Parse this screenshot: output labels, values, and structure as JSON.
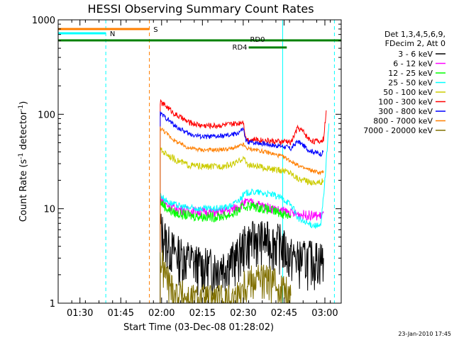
{
  "chart_data": {
    "type": "line",
    "title": "HESSI Observing Summary Count Rates",
    "xlabel": "Start Time (03-Dec-08 01:28:02)",
    "ylabel_main": "Count Rate (s",
    "ylabel_sup1": "-1",
    "ylabel_mid": " detector",
    "ylabel_sup2": "-1",
    "ylabel_end": ")",
    "yscale": "log",
    "ylim": [
      1,
      1000
    ],
    "xlim_minutes": [
      82,
      186
    ],
    "x_ticks": [
      {
        "label": "01:30",
        "minutes": 90
      },
      {
        "label": "01:45",
        "minutes": 105
      },
      {
        "label": "02:00",
        "minutes": 120
      },
      {
        "label": "02:15",
        "minutes": 135
      },
      {
        "label": "02:30",
        "minutes": 150
      },
      {
        "label": "02:45",
        "minutes": 165
      },
      {
        "label": "03:00",
        "minutes": 180
      }
    ],
    "y_ticks": [
      {
        "label": "1",
        "value": 1
      },
      {
        "label": "10",
        "value": 10
      },
      {
        "label": "100",
        "value": 100
      },
      {
        "label": "1000",
        "value": 1000
      }
    ],
    "legend": {
      "header": [
        "Det 1,3,4,5,6,9,",
        "FDecim 2, Att 0"
      ],
      "placement": "right"
    },
    "series": [
      {
        "name": "3 - 6 keV",
        "color": "#000000",
        "x": [
          119.5,
          122,
          125,
          130,
          135,
          140,
          145,
          148,
          150,
          152,
          155,
          158,
          161,
          164,
          166,
          167.5,
          170,
          173,
          176,
          178.5,
          179.5
        ],
        "y": [
          6.5,
          4.5,
          3.5,
          3.0,
          2.5,
          2.5,
          2.8,
          3.2,
          4.2,
          4.6,
          5.0,
          4.8,
          4.6,
          4.4,
          3.5,
          3.2,
          3.0,
          3.0,
          3.0,
          3.0,
          3.0
        ]
      },
      {
        "name": "6 - 12 keV",
        "color": "#ff00ff",
        "x": [
          119.5,
          122,
          125,
          130,
          135,
          140,
          145,
          148,
          150,
          152,
          155,
          158,
          161,
          164,
          166,
          167.5,
          170,
          173,
          176,
          178.5,
          179.5
        ],
        "y": [
          13,
          11,
          10,
          9.5,
          9.3,
          9.2,
          9.6,
          10.5,
          11.5,
          11.8,
          11.2,
          10.5,
          10.0,
          9.5,
          9.3,
          9.0,
          8.8,
          8.6,
          8.5,
          8.4,
          9.0
        ]
      },
      {
        "name": "12 - 25 keV",
        "color": "#00ff00",
        "x": [
          119.5,
          122,
          125,
          130,
          135,
          140,
          145,
          148,
          150,
          152,
          155,
          158,
          161,
          164,
          166,
          167.5
        ],
        "y": [
          12,
          10,
          9,
          8.5,
          8.3,
          8.2,
          8.6,
          9.5,
          10.5,
          10.8,
          10.5,
          10.0,
          9.5,
          9.0,
          8.7,
          8.5
        ]
      },
      {
        "name": "25 - 50 keV",
        "color": "#00ffff",
        "x": [
          119.5,
          122,
          125,
          130,
          135,
          140,
          145,
          148,
          150,
          152,
          155,
          158,
          161,
          164,
          166,
          167.5,
          168.5,
          170,
          173,
          176,
          178.5,
          180,
          181.5
        ],
        "y": [
          14,
          12,
          11,
          10.2,
          10,
          10,
          10.6,
          12,
          14,
          15,
          15,
          14.5,
          14,
          13,
          12,
          11,
          10,
          8,
          7,
          6.7,
          6.5,
          20,
          80
        ]
      },
      {
        "name": "50 - 100 keV",
        "color": "#cccc00",
        "x": [
          119.5,
          122,
          125,
          130,
          135,
          140,
          145,
          148,
          150,
          151,
          152,
          155,
          158,
          161,
          164,
          166,
          167.5,
          170,
          172,
          174,
          176,
          178.5,
          179.5
        ],
        "y": [
          42,
          38,
          33,
          29,
          28,
          28,
          29,
          31,
          35,
          31,
          29,
          28,
          27,
          26,
          25.5,
          25,
          24,
          21,
          20,
          19.5,
          19,
          19,
          20
        ]
      },
      {
        "name": "100 - 300 keV",
        "color": "#ff0000",
        "x": [
          119.5,
          122,
          125,
          130,
          135,
          140,
          145,
          148,
          150,
          151,
          152,
          155,
          158,
          161,
          164,
          166,
          167.5,
          170,
          172,
          174,
          176,
          178.5,
          179.5,
          180.5
        ],
        "y": [
          135,
          120,
          100,
          82,
          76,
          76,
          78,
          80,
          85,
          55,
          54,
          54,
          53,
          52,
          51,
          52,
          50,
          72,
          66,
          55,
          52,
          52,
          55,
          110
        ]
      },
      {
        "name": "300 - 800 keV",
        "color": "#0000ff",
        "x": [
          119.5,
          122,
          125,
          130,
          135,
          140,
          145,
          148,
          150,
          151,
          152,
          155,
          158,
          161,
          164,
          166,
          167.5,
          170,
          172,
          174,
          176,
          178.5,
          179.5
        ],
        "y": [
          102,
          90,
          75,
          62,
          58,
          58,
          60,
          63,
          70,
          52,
          51,
          50,
          49,
          47,
          46,
          45,
          43,
          52,
          47,
          42,
          40,
          38,
          40
        ]
      },
      {
        "name": "800 - 7000 keV",
        "color": "#ff7f00",
        "x": [
          119.5,
          122,
          125,
          130,
          135,
          140,
          145,
          148,
          150,
          151,
          152,
          155,
          158,
          161,
          164,
          166,
          167.5,
          170,
          172,
          174,
          176,
          178.5,
          179.5
        ],
        "y": [
          72,
          62,
          52,
          44,
          42,
          42,
          43,
          45,
          48,
          44,
          43,
          42,
          40,
          38,
          36,
          34,
          32,
          29,
          27,
          26,
          25,
          24,
          25
        ]
      },
      {
        "name": "7000 - 20000 keV",
        "color": "#807000",
        "x": [
          119.5,
          121,
          123,
          125,
          128,
          130,
          135,
          140,
          145,
          148,
          150,
          152,
          155,
          158,
          161,
          164,
          166,
          167.5
        ],
        "y": [
          3.0,
          2.2,
          1.6,
          1.3,
          1.2,
          1.1,
          1.1,
          1.1,
          1.1,
          1.2,
          1.6,
          1.8,
          1.9,
          1.8,
          1.7,
          1.5,
          1.3,
          1.2
        ]
      }
    ],
    "flag_bars": [
      {
        "label": "S",
        "color": "#ff7f00",
        "x_start": 82,
        "x_end": 115.5,
        "label_x": 117
      },
      {
        "label": "N",
        "color": "#00ffff",
        "x_start": 82,
        "x_end": 99.5,
        "label_x": 101
      },
      {
        "label": "RD0",
        "color": "#008000",
        "x_start": 82,
        "x_end": 186,
        "label_x": 152.5
      },
      {
        "label": "RD4",
        "color": "#008000",
        "x_start": 152,
        "x_end": 166,
        "label_x": 146
      }
    ],
    "vertical_markers": [
      {
        "x": 99.5,
        "color": "#00ffff",
        "style": "dashed"
      },
      {
        "x": 115.5,
        "color": "#ff7f00",
        "style": "dashed"
      },
      {
        "x": 164.5,
        "color": "#00ffff",
        "style": "solid"
      },
      {
        "x": 183.5,
        "color": "#00ffff",
        "style": "dashed"
      }
    ],
    "timestamp": "23-Jan-2010 17:45"
  }
}
